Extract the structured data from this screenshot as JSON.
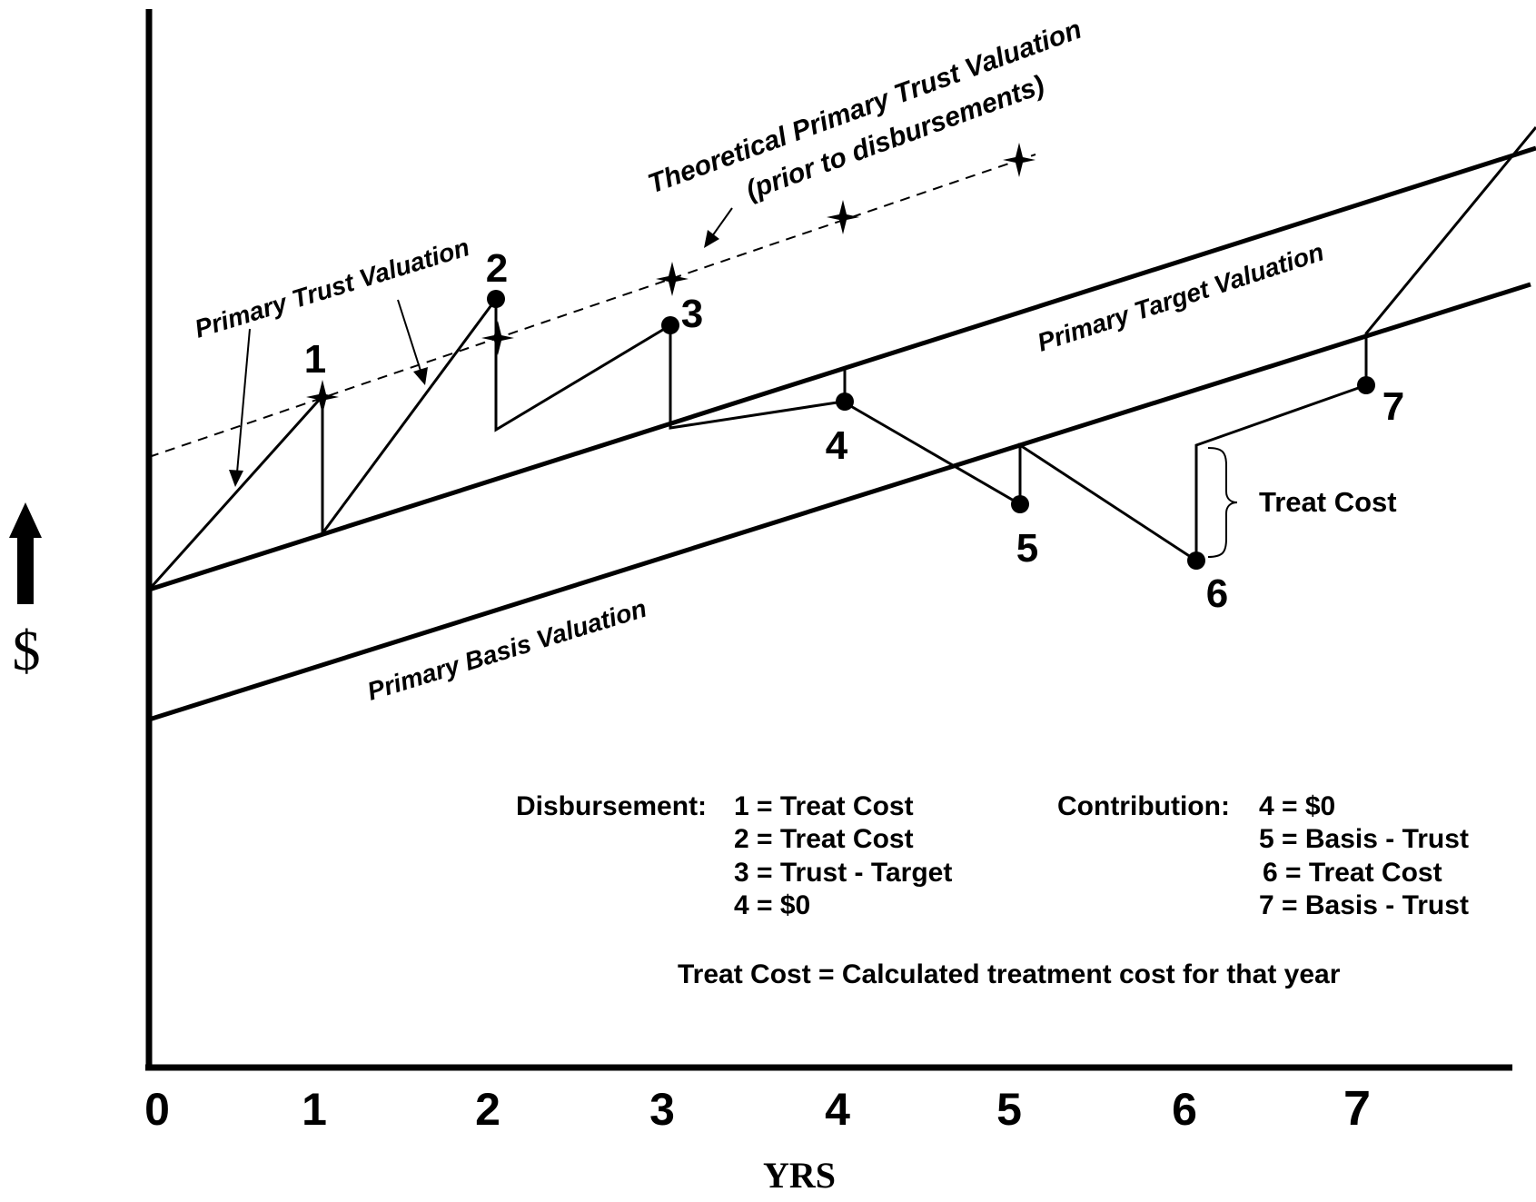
{
  "diagram": {
    "y_axis_symbol": "$",
    "x_axis_title": "YRS",
    "x_ticks": [
      "0",
      "1",
      "2",
      "3",
      "4",
      "5",
      "6",
      "7"
    ],
    "line_labels": {
      "theoretical_line1": "Theoretical Primary Trust Valuation",
      "theoretical_line2": "(prior to disbursements)",
      "trust": "Primary Trust Valuation",
      "target": "Primary Target Valuation",
      "basis": "Primary Basis Valuation"
    },
    "point_labels": [
      "1",
      "2",
      "3",
      "4",
      "5",
      "6",
      "7"
    ],
    "bracket_label": "Treat Cost",
    "legend": {
      "disbursement_title": "Disbursement:",
      "disbursement_items": [
        "1 = Treat Cost",
        "2 = Treat Cost",
        "3 = Trust - Target",
        "4 = $0"
      ],
      "contribution_title": "Contribution:",
      "contribution_items": [
        "4 = $0",
        "5 = Basis - Trust",
        "6 = Treat Cost",
        "7 = Basis - Trust"
      ],
      "footnote": "Treat Cost = Calculated treatment cost for that year"
    }
  }
}
